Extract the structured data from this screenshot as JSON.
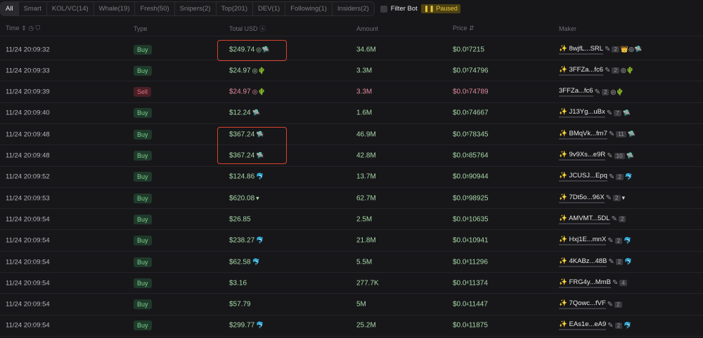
{
  "tabs": [
    "All",
    "Smart",
    "KOL/VC(14)",
    "Whale(19)",
    "Fresh(50)",
    "Snipers(2)",
    "Top(201)",
    "DEV(1)",
    "Following(1)",
    "Insiders(2)"
  ],
  "filter": {
    "label": "Filter Bot",
    "paused": "❚❚ Paused"
  },
  "columns": {
    "time": "Time ⇕ ◷ ⛉",
    "type": "Type",
    "usd": "Total USD ⓢ",
    "amount": "Amount",
    "price": "Price ⇵",
    "maker": "Maker"
  },
  "colors": {
    "buy": "#7fcf8f",
    "sell": "#e0707f",
    "highlight": "#d9412f"
  },
  "rows": [
    {
      "time": "11/24 20:09:32",
      "type": "Buy",
      "usd": "$249.74",
      "icons": "◎🛸",
      "amount": "34.6M",
      "p": "$0.0",
      "sub": "5",
      "d": "7215",
      "maker": "8wjfL...SRL",
      "star": "✨",
      "cnt": "2",
      "micons": "👑◎🛸"
    },
    {
      "time": "11/24 20:09:33",
      "type": "Buy",
      "usd": "$24.97",
      "icons": "◎🌵",
      "amount": "3.3M",
      "p": "$0.0",
      "sub": "5",
      "d": "74796",
      "maker": "3FFZa...fc6",
      "star": "✨",
      "cnt": "2",
      "micons": "◎🌵"
    },
    {
      "time": "11/24 20:09:39",
      "type": "Sell",
      "usd": "$24.97",
      "icons": "◎🌵",
      "amount": "3.3M",
      "p": "$0.0",
      "sub": "5",
      "d": "74789",
      "maker": "3FFZa...fc6",
      "star": "",
      "cnt": "2",
      "micons": "◎🌵"
    },
    {
      "time": "11/24 20:09:40",
      "type": "Buy",
      "usd": "$12.24",
      "icons": "🛸",
      "amount": "1.6M",
      "p": "$0.0",
      "sub": "5",
      "d": "74667",
      "maker": "J13Yg...uBx",
      "star": "✨",
      "cnt": "7",
      "micons": "🛸"
    },
    {
      "time": "11/24 20:09:48",
      "type": "Buy",
      "usd": "$367.24",
      "icons": "🛸",
      "amount": "46.9M",
      "p": "$0.0",
      "sub": "5",
      "d": "78345",
      "maker": "BMqVk...fm7",
      "star": "✨",
      "cnt": "11",
      "micons": "🛸"
    },
    {
      "time": "11/24 20:09:48",
      "type": "Buy",
      "usd": "$367.24",
      "icons": "🛸",
      "amount": "42.8M",
      "p": "$0.0",
      "sub": "5",
      "d": "85764",
      "maker": "9v9Xs...e9R",
      "star": "✨",
      "cnt": "10",
      "micons": "🛸"
    },
    {
      "time": "11/24 20:09:52",
      "type": "Buy",
      "usd": "$124.86",
      "icons": "🐬",
      "amount": "13.7M",
      "p": "$0.0",
      "sub": "5",
      "d": "90944",
      "maker": "JCUSJ...Epq",
      "star": "✨",
      "cnt": "2",
      "micons": "🐬"
    },
    {
      "time": "11/24 20:09:53",
      "type": "Buy",
      "usd": "$620.08",
      "icons": "▾",
      "amount": "62.7M",
      "p": "$0.0",
      "sub": "5",
      "d": "98925",
      "maker": "7Dt5o...96X",
      "star": "✨",
      "cnt": "2",
      "micons": "▾"
    },
    {
      "time": "11/24 20:09:54",
      "type": "Buy",
      "usd": "$26.85",
      "icons": "",
      "amount": "2.5M",
      "p": "$0.0",
      "sub": "4",
      "d": "10635",
      "maker": "AMVMT...5DL",
      "star": "✨",
      "cnt": "2",
      "micons": ""
    },
    {
      "time": "11/24 20:09:54",
      "type": "Buy",
      "usd": "$238.27",
      "icons": "🐬",
      "amount": "21.8M",
      "p": "$0.0",
      "sub": "4",
      "d": "10941",
      "maker": "Hxj1E...mnX",
      "star": "✨",
      "cnt": "2",
      "micons": "🐬"
    },
    {
      "time": "11/24 20:09:54",
      "type": "Buy",
      "usd": "$62.58",
      "icons": "🐬",
      "amount": "5.5M",
      "p": "$0.0",
      "sub": "4",
      "d": "11296",
      "maker": "4KABz...48B",
      "star": "✨",
      "cnt": "2",
      "micons": "🐬"
    },
    {
      "time": "11/24 20:09:54",
      "type": "Buy",
      "usd": "$3.16",
      "icons": "",
      "amount": "277.7K",
      "p": "$0.0",
      "sub": "4",
      "d": "11374",
      "maker": "FRG4y...MmB",
      "star": "✨",
      "cnt": "4",
      "micons": ""
    },
    {
      "time": "11/24 20:09:54",
      "type": "Buy",
      "usd": "$57.79",
      "icons": "",
      "amount": "5M",
      "p": "$0.0",
      "sub": "4",
      "d": "11447",
      "maker": "7Qowc...fVF",
      "star": "✨",
      "cnt": "2",
      "micons": ""
    },
    {
      "time": "11/24 20:09:54",
      "type": "Buy",
      "usd": "$299.77",
      "icons": "🐬",
      "amount": "25.2M",
      "p": "$0.0",
      "sub": "4",
      "d": "11875",
      "maker": "EAs1e...eA9",
      "star": "✨",
      "cnt": "2",
      "micons": "🐬"
    }
  ]
}
